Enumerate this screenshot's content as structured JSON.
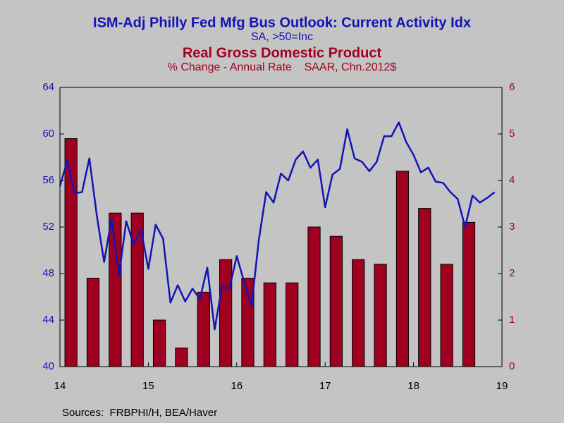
{
  "chart_data": {
    "type": "bar-line",
    "title": "ISM-Adj Philly Fed Mfg Bus Outlook: Current Activity Idx",
    "subtitle": "SA, >50=Inc",
    "title2": "Real Gross Domestic Product",
    "subtitle2": "% Change - Annual Rate    SAAR, Chn.2012$",
    "source": "Sources:  FRBPHI/H, BEA/Haver",
    "xlim": [
      2014,
      2019
    ],
    "xticks": [
      {
        "value": 2014,
        "label": "14"
      },
      {
        "value": 2015,
        "label": "15"
      },
      {
        "value": 2016,
        "label": "16"
      },
      {
        "value": 2017,
        "label": "17"
      },
      {
        "value": 2018,
        "label": "18"
      },
      {
        "value": 2019,
        "label": "19"
      }
    ],
    "ylim": [
      40,
      64
    ],
    "yticks": [
      40,
      44,
      48,
      52,
      56,
      60,
      64
    ],
    "y2lim": [
      0,
      6
    ],
    "y2ticks": [
      0,
      1,
      2,
      3,
      4,
      5,
      6
    ],
    "series": [
      {
        "name": "Real Gross Domestic Product",
        "type": "bar",
        "axis": "y2",
        "color": "#a00020",
        "x": [
          2014.125,
          2014.375,
          2014.625,
          2014.875,
          2015.125,
          2015.375,
          2015.625,
          2015.875,
          2016.125,
          2016.375,
          2016.625,
          2016.875,
          2017.125,
          2017.375,
          2017.625,
          2017.875,
          2018.125,
          2018.375,
          2018.625
        ],
        "values": [
          4.9,
          1.9,
          3.3,
          3.3,
          1.0,
          0.4,
          1.6,
          2.3,
          1.9,
          1.8,
          1.8,
          3.0,
          2.8,
          2.3,
          2.2,
          4.2,
          3.4,
          2.2,
          3.1
        ]
      },
      {
        "name": "ISM-Adj Philly Fed Mfg Bus Outlook: Current Activity Idx",
        "type": "line",
        "axis": "y",
        "color": "#1414b4",
        "x": [
          2014,
          2014.083,
          2014.167,
          2014.25,
          2014.333,
          2014.417,
          2014.5,
          2014.583,
          2014.667,
          2014.75,
          2014.833,
          2014.917,
          2015,
          2015.083,
          2015.167,
          2015.25,
          2015.333,
          2015.417,
          2015.5,
          2015.583,
          2015.667,
          2015.75,
          2015.833,
          2015.917,
          2016,
          2016.083,
          2016.167,
          2016.25,
          2016.333,
          2016.417,
          2016.5,
          2016.583,
          2016.667,
          2016.75,
          2016.833,
          2016.917,
          2017,
          2017.083,
          2017.167,
          2017.25,
          2017.333,
          2017.417,
          2017.5,
          2017.583,
          2017.667,
          2017.75,
          2017.833,
          2017.917,
          2018,
          2018.083,
          2018.167,
          2018.25,
          2018.333,
          2018.417,
          2018.5,
          2018.583,
          2018.667,
          2018.75,
          2018.833,
          2018.917
        ],
        "values": [
          55.5,
          57.7,
          54.9,
          55.0,
          57.9,
          53.0,
          49.0,
          52.7,
          47.8,
          52.5,
          50.5,
          51.8,
          48.4,
          52.2,
          51.0,
          45.5,
          47.0,
          45.6,
          46.7,
          45.8,
          48.5,
          43.2,
          46.9,
          46.7,
          49.5,
          47.3,
          45.2,
          50.9,
          55.0,
          54.1,
          56.6,
          56.0,
          57.8,
          58.5,
          57.1,
          57.8,
          53.7,
          56.5,
          57.0,
          60.4,
          57.9,
          57.6,
          56.8,
          57.6,
          59.8,
          59.8,
          61.0,
          59.3,
          58.2,
          56.7,
          57.1,
          55.9,
          55.8,
          55.0,
          54.4,
          52.0,
          54.7,
          54.1,
          54.5,
          55.0
        ]
      }
    ]
  }
}
